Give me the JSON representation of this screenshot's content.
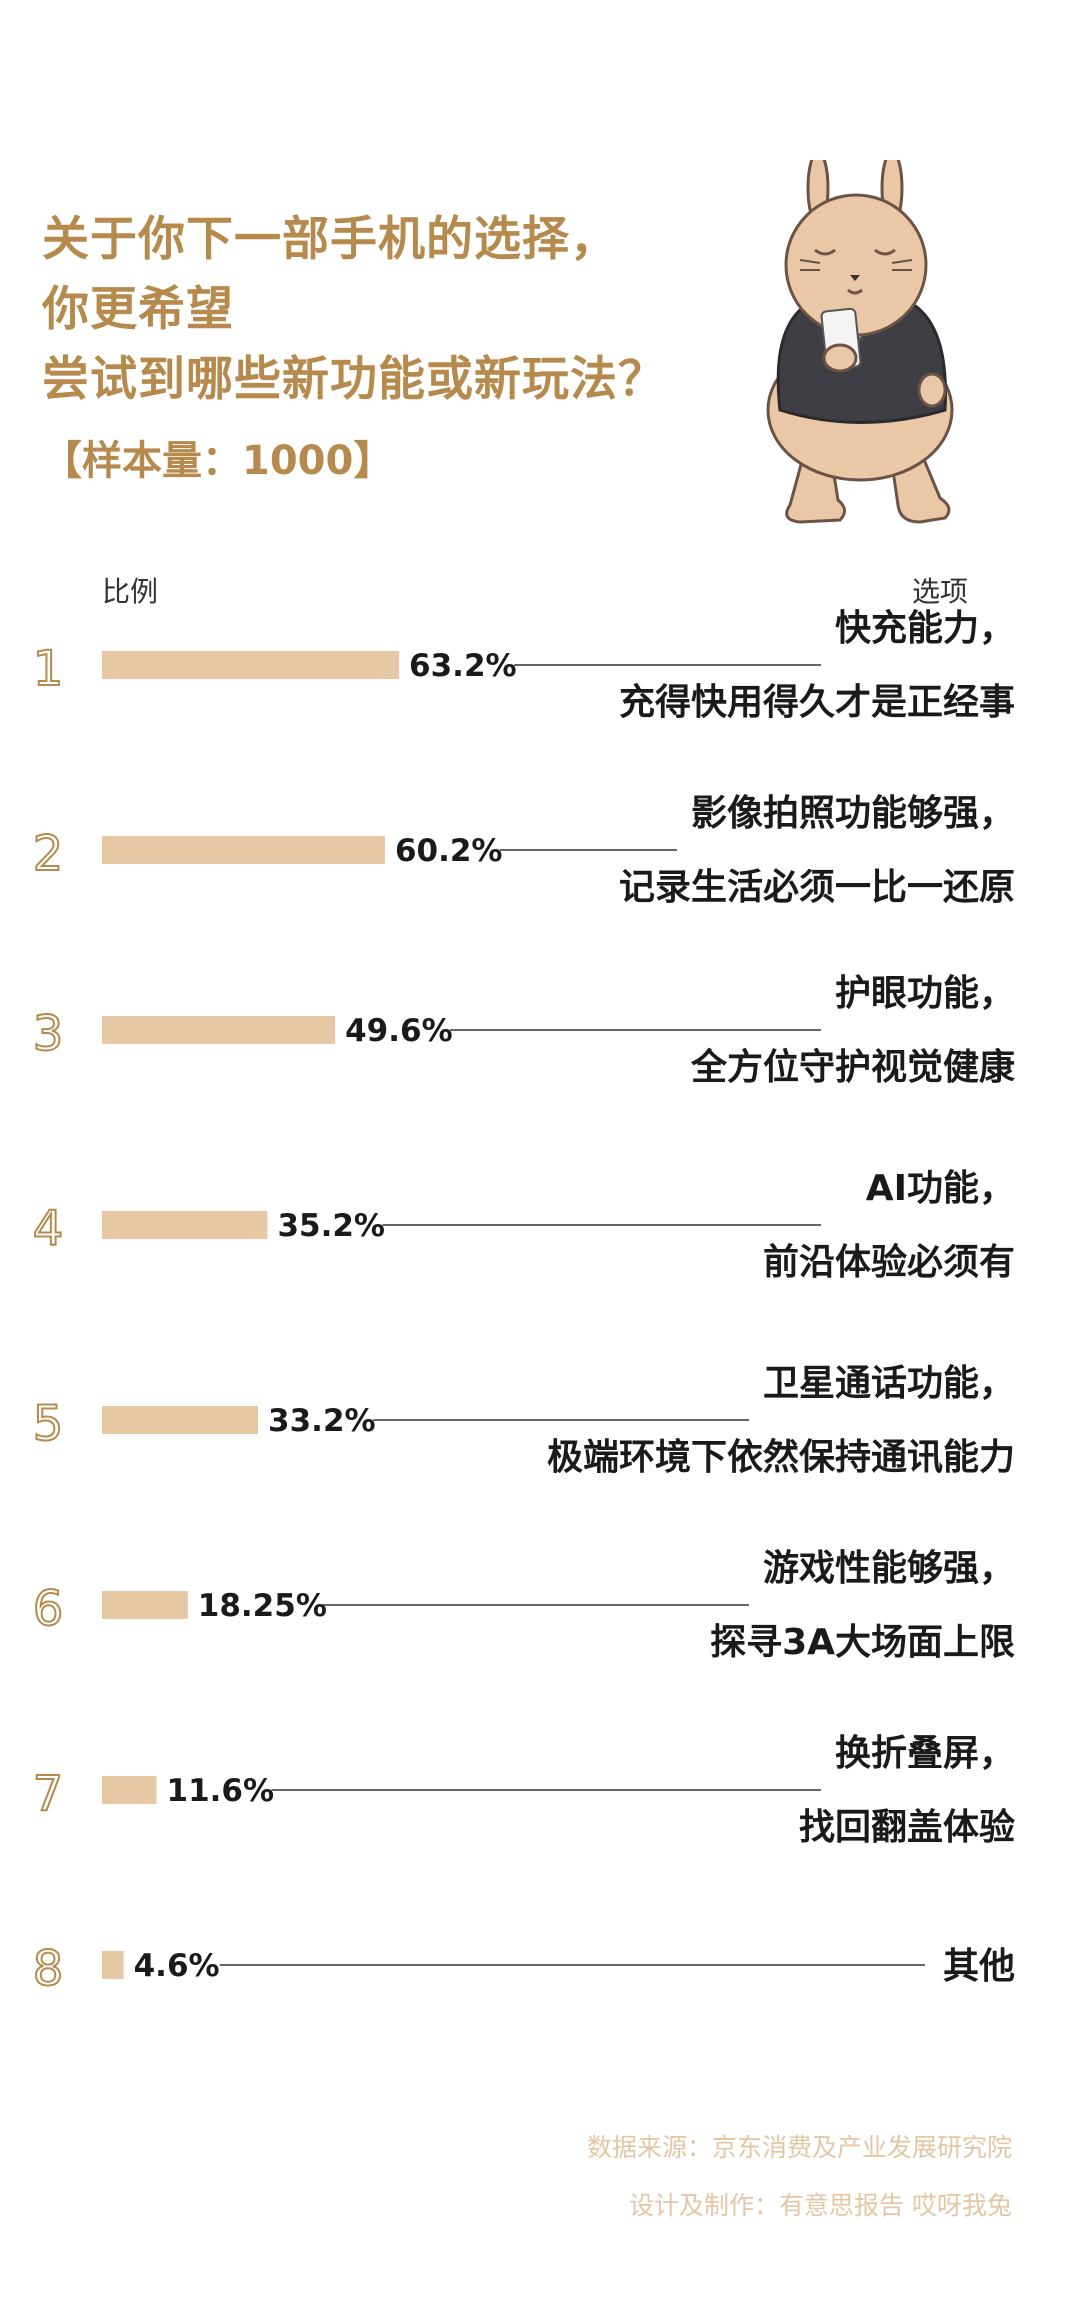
{
  "title_lines": [
    "关于你下一部手机的选择，",
    "你更希望",
    "尝试到哪些新功能或新玩法？"
  ],
  "sample_label": "【样本量：1000】",
  "header": {
    "left": "比例",
    "right": "选项"
  },
  "colors": {
    "title": "#b58a4c",
    "bar": "#e6c8a5",
    "rank": "#b58a4c",
    "footer": "#e3c6a4"
  },
  "chart_data": {
    "type": "bar",
    "orientation": "horizontal",
    "title": "关于你下一部手机的选择，你更希望尝试到哪些新功能或新玩法？",
    "xlabel": "比例",
    "ylabel": "选项",
    "unit": "%",
    "xlim": [
      0,
      100
    ],
    "ranks": [
      "1",
      "2",
      "3",
      "4",
      "5",
      "6",
      "7",
      "8"
    ],
    "categories": [
      [
        "快充能力，",
        "充得快用得久才是正经事"
      ],
      [
        "影像拍照功能够强，",
        "记录生活必须一比一还原"
      ],
      [
        "护眼功能，",
        "全方位守护视觉健康"
      ],
      [
        "AI功能，",
        "前沿体验必须有"
      ],
      [
        "卫星通话功能，",
        "极端环境下依然保持通讯能力"
      ],
      [
        "游戏性能够强，",
        "探寻3A大场面上限"
      ],
      [
        "换折叠屏，",
        "找回翻盖体验"
      ],
      [
        "其他"
      ]
    ],
    "values": [
      63.2,
      60.2,
      49.6,
      35.2,
      33.2,
      18.25,
      11.6,
      4.6
    ],
    "value_labels": [
      "63.2%",
      "60.2%",
      "49.6%",
      "35.2%",
      "33.2%",
      "18.25%",
      "11.6%",
      "4.6%"
    ],
    "grid": false,
    "legend": "none"
  },
  "footer": {
    "source": "数据来源：京东消费及产业发展研究院",
    "credit": "设计及制作：有意思报告 哎呀我兔"
  }
}
